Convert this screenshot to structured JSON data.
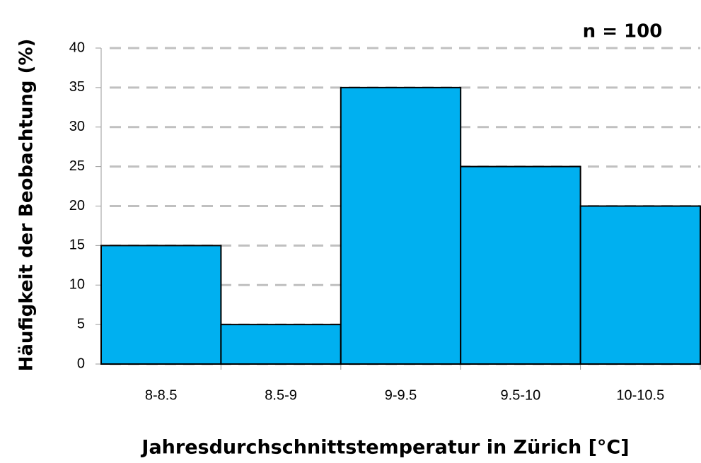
{
  "chart_data": {
    "type": "bar",
    "x_label": "Jahresdurchschnittstemperatur in Zürich [°C]",
    "y_label": "Häufigkeit der Beobachtung (%)",
    "annotation": "n = 100",
    "categories": [
      "8-8.5",
      "8.5-9",
      "9-9.5",
      "9.5-10",
      "10-10.5"
    ],
    "values": [
      15,
      5,
      35,
      25,
      20
    ],
    "color": "#00b0f0",
    "ylim": [
      0,
      40
    ],
    "yticks": [
      0,
      5,
      10,
      15,
      20,
      25,
      30,
      35,
      40
    ],
    "grid": true
  }
}
